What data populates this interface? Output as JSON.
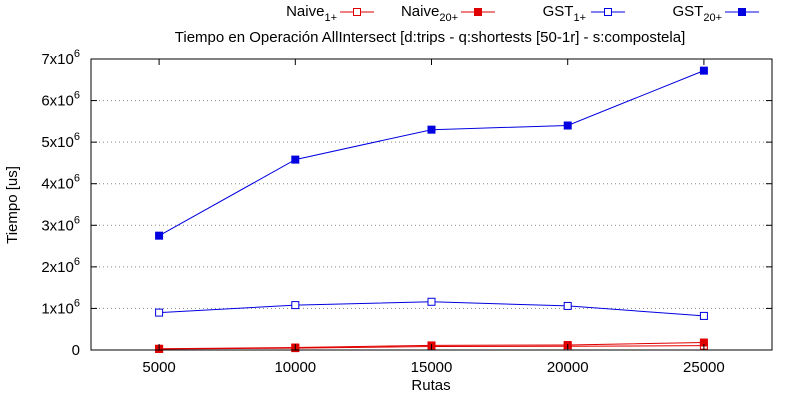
{
  "chart_data": {
    "type": "line",
    "title": "Tiempo en Operación AllIntersect [d:trips - q:shortests [50-1r] - s:compostela]",
    "xlabel": "Rutas",
    "ylabel": "Tiempo [us]",
    "x": [
      5000,
      10000,
      15000,
      20000,
      25000
    ],
    "xlim": [
      2500,
      27500
    ],
    "ylim": [
      0,
      7000000
    ],
    "x_ticks": [
      "5000",
      "10000",
      "15000",
      "20000",
      "25000"
    ],
    "y_ticks": [
      {
        "value": 0,
        "base": "0",
        "exp": ""
      },
      {
        "value": 1000000,
        "base": "1x10",
        "exp": "6"
      },
      {
        "value": 2000000,
        "base": "2x10",
        "exp": "6"
      },
      {
        "value": 3000000,
        "base": "3x10",
        "exp": "6"
      },
      {
        "value": 4000000,
        "base": "4x10",
        "exp": "6"
      },
      {
        "value": 5000000,
        "base": "5x10",
        "exp": "6"
      },
      {
        "value": 6000000,
        "base": "6x10",
        "exp": "6"
      },
      {
        "value": 7000000,
        "base": "7x10",
        "exp": "6"
      }
    ],
    "grid": "horizontal-dotted",
    "legend_position": "top",
    "series": [
      {
        "name_base": "Naive",
        "name_sub": "1+",
        "color": "#e00000",
        "marker": "open-square",
        "values": [
          25000,
          45000,
          85000,
          90000,
          105000
        ]
      },
      {
        "name_base": "Naive",
        "name_sub": "20+",
        "color": "#e00000",
        "marker": "filled-square",
        "values": [
          30000,
          60000,
          110000,
          120000,
          180000
        ]
      },
      {
        "name_base": "GST",
        "name_sub": "1+",
        "color": "#0000e0",
        "marker": "open-square",
        "values": [
          900000,
          1080000,
          1160000,
          1060000,
          820000
        ]
      },
      {
        "name_base": "GST",
        "name_sub": "20+",
        "color": "#0000e0",
        "marker": "filled-square",
        "values": [
          2750000,
          4580000,
          5300000,
          5400000,
          6720000
        ]
      }
    ]
  }
}
